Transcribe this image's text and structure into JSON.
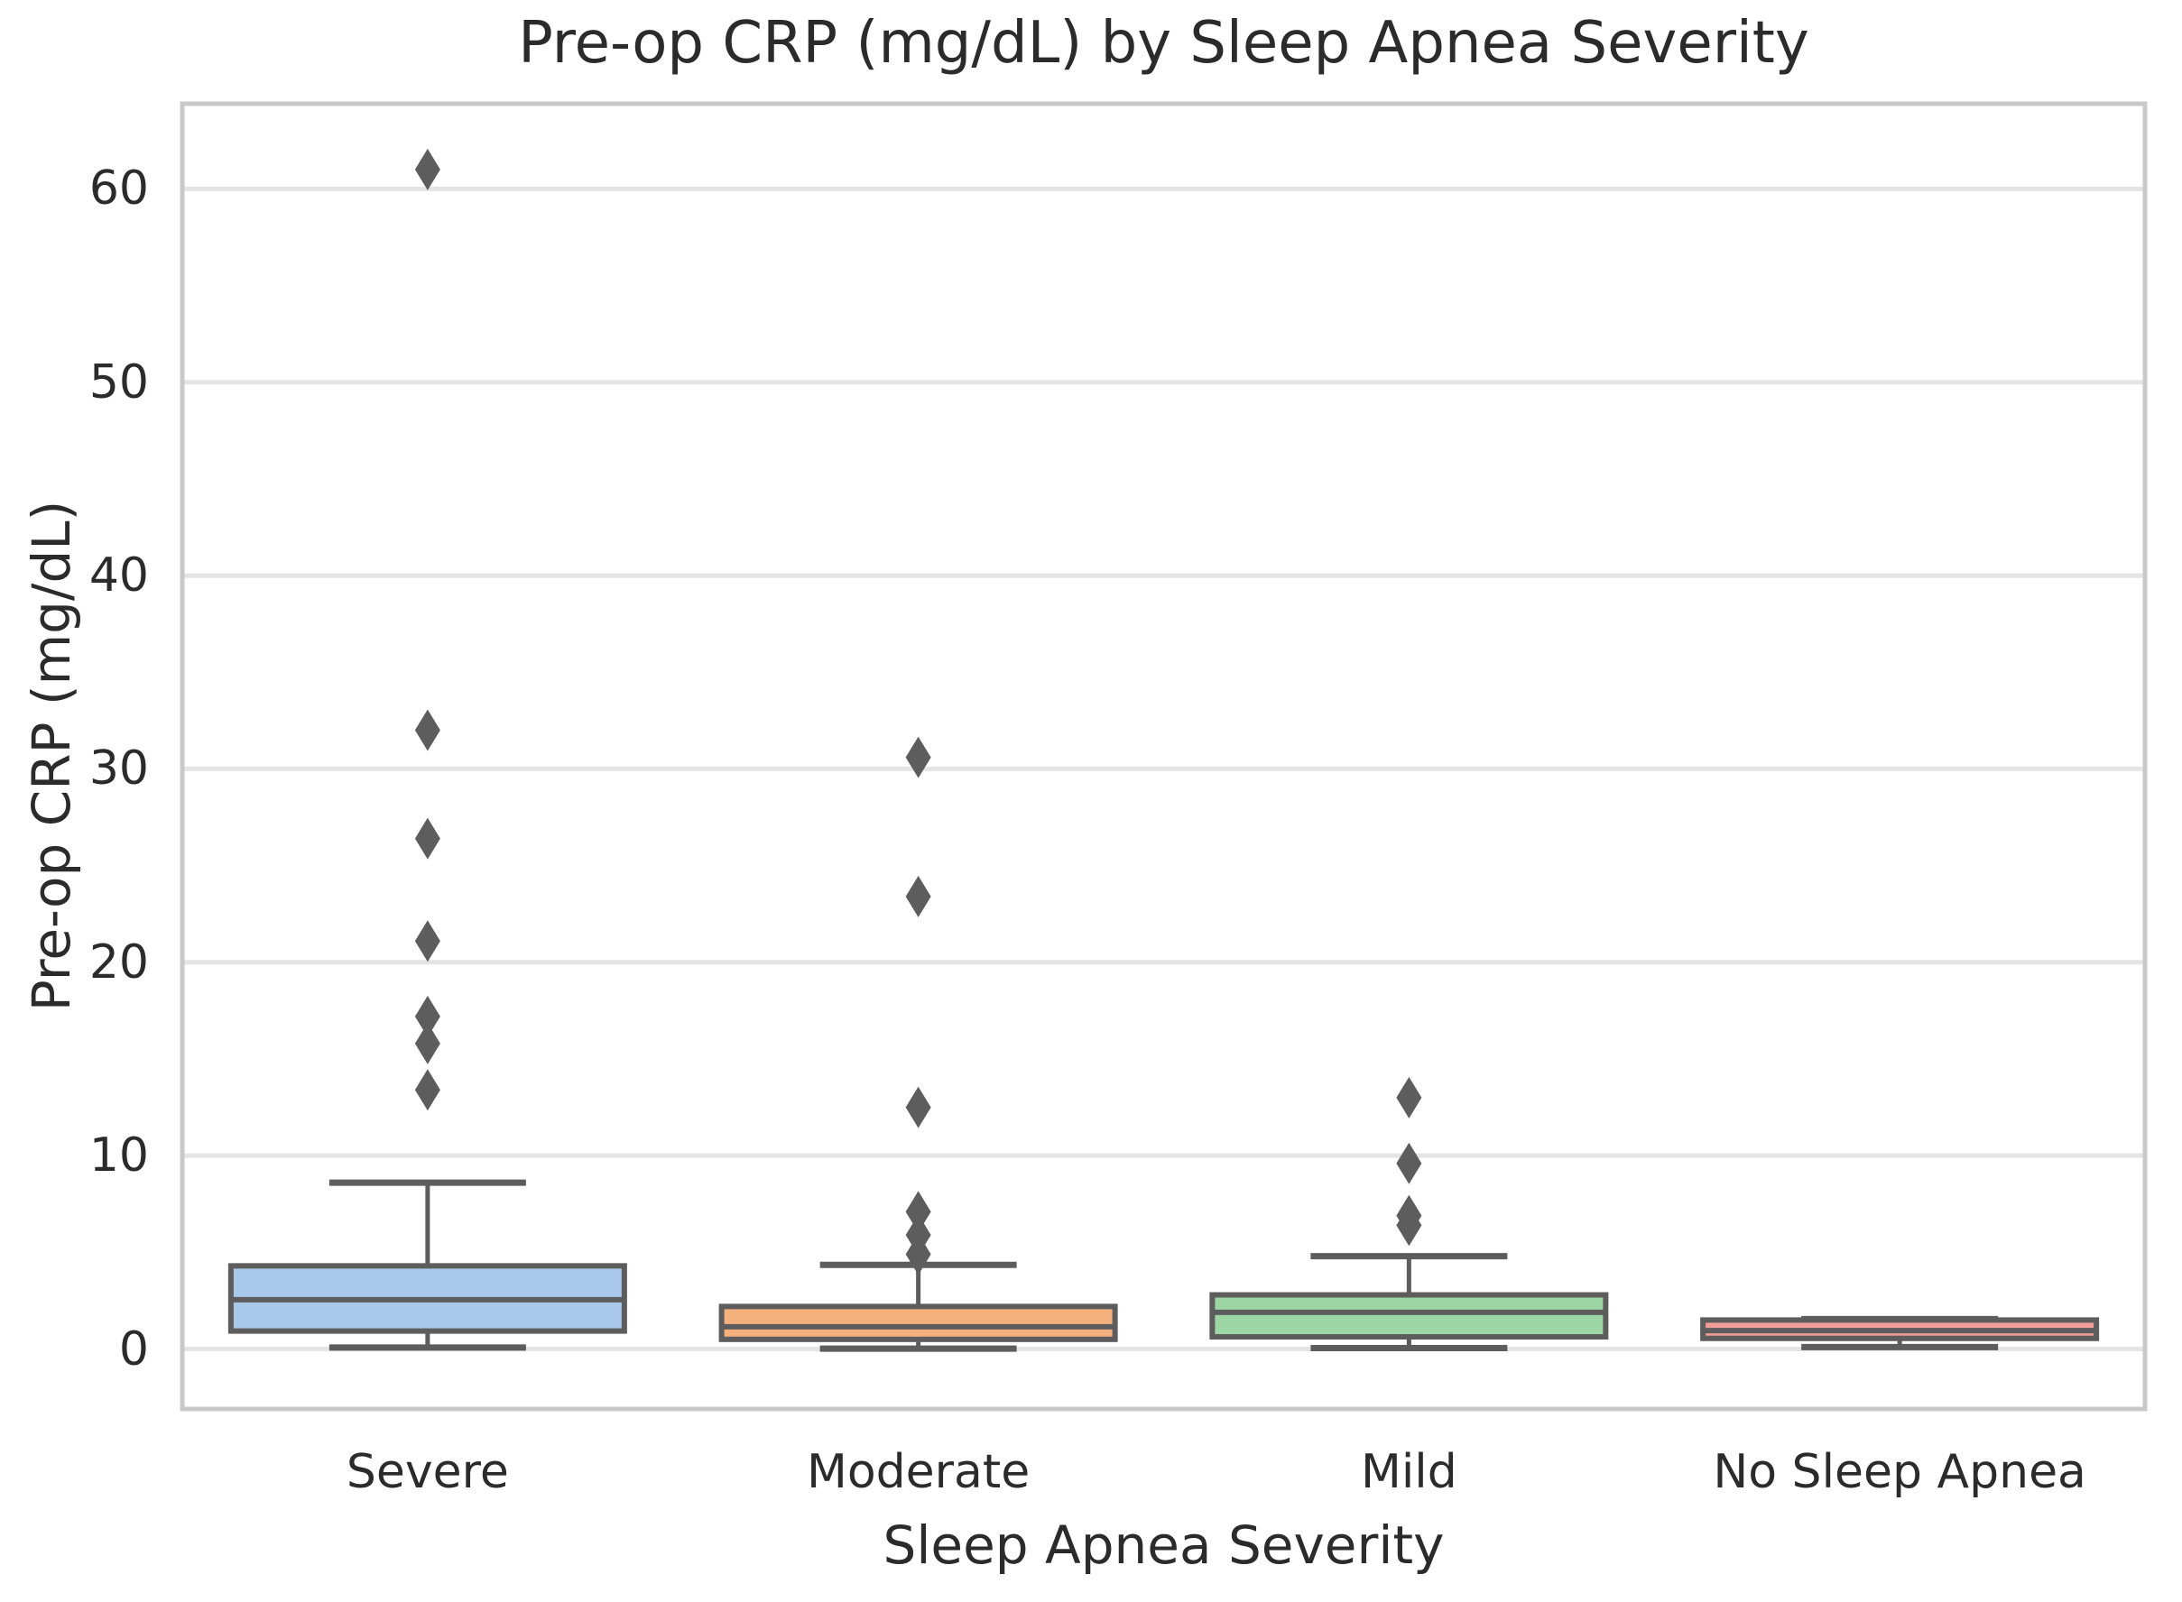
{
  "chart_data": {
    "type": "boxplot",
    "title": "Pre-op CRP (mg/dL) by Sleep Apnea Severity",
    "xlabel": "Sleep Apnea Severity",
    "ylabel": "Pre-op CRP (mg/dL)",
    "categories": [
      "Severe",
      "Moderate",
      "Mild",
      "No Sleep Apnea"
    ],
    "y_ticks": [
      0,
      10,
      20,
      30,
      40,
      50,
      60
    ],
    "ylim": [
      -3.1,
      64.4
    ],
    "grid": "horizontal-lines-only",
    "legend": "none",
    "marker": "diamond",
    "series": [
      {
        "category": "Severe",
        "box_color": "#a9c8ea",
        "whisker_low": 0.08,
        "q1": 0.93,
        "median": 2.55,
        "q3": 4.3,
        "whisker_high": 8.6,
        "outliers": [
          61.0,
          32.0,
          26.4,
          21.1,
          17.2,
          15.8,
          13.4
        ]
      },
      {
        "category": "Moderate",
        "box_color": "#f4b17e",
        "whisker_low": 0.02,
        "q1": 0.5,
        "median": 1.15,
        "q3": 2.2,
        "whisker_high": 4.35,
        "outliers": [
          30.6,
          23.4,
          12.5,
          7.1,
          5.9,
          4.9
        ]
      },
      {
        "category": "Mild",
        "box_color": "#9bd6a4",
        "whisker_low": 0.05,
        "q1": 0.63,
        "median": 1.9,
        "q3": 2.8,
        "whisker_high": 4.8,
        "outliers": [
          13.0,
          9.6,
          6.9,
          6.4
        ]
      },
      {
        "category": "No Sleep Apnea",
        "box_color": "#f39c98",
        "whisker_low": 0.1,
        "q1": 0.55,
        "median": 0.95,
        "q3": 1.5,
        "whisker_high": 1.55,
        "outliers": []
      }
    ],
    "colors": {
      "box_edge": "#5d5d5d",
      "median_line": "#5d5d5d",
      "whisker": "#5d5d5d",
      "flier": "#5d5d5d",
      "grid_line": "#e4e4e4",
      "spine": "#c9c9c9",
      "text": "#2b2b2b",
      "background": "#ffffff"
    }
  }
}
